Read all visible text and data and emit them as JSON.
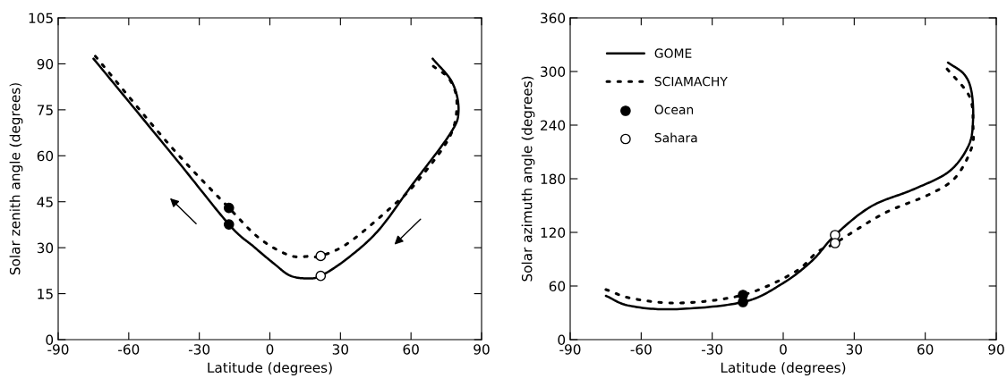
{
  "chart_data": [
    {
      "type": "line",
      "xlabel": "Latitude (degrees)",
      "ylabel": "Solar zenith angle (degrees)",
      "xlim": [
        -90,
        90
      ],
      "xticks": [
        -90,
        -60,
        -30,
        0,
        30,
        60,
        90
      ],
      "ylim": [
        0,
        105
      ],
      "yticks": [
        0,
        15,
        30,
        45,
        60,
        75,
        90,
        105
      ],
      "grid": false,
      "legend": false,
      "series": [
        {
          "color": "#000000",
          "line_style": "solid",
          "x": [
            -75,
            -40,
            -17.4,
            -6.8,
            1.9,
            8.3,
            15,
            21.6,
            33.3,
            46.2,
            60,
            76.4,
            80.2,
            77.6,
            69.2
          ],
          "values": [
            91.7,
            59,
            37.6,
            30.3,
            24.7,
            21,
            20,
            20.8,
            26.7,
            35.7,
            50,
            66.9,
            74.5,
            83.8,
            91.7
          ]
        },
        {
          "color": "#000000",
          "line_style": "dotted",
          "x": [
            -74.2,
            -42.4,
            -17.4,
            -4.5,
            8.3,
            17,
            21.6,
            33.3,
            52.2,
            62.4,
            76.4,
            79.5,
            76.4,
            69.2
          ],
          "values": [
            92.5,
            63.3,
            43,
            33.1,
            27.5,
            27.2,
            27.3,
            31.5,
            43.6,
            51.4,
            66.1,
            77.3,
            84.9,
            89.4
          ]
        },
        {
          "type": "scatter",
          "color": "#000000",
          "marker": "circle",
          "x": [
            -17.4,
            -17.4
          ],
          "values": [
            37.6,
            43
          ]
        },
        {
          "type": "scatter",
          "color": "#ffffff",
          "marker": "circle",
          "x": [
            21.6,
            21.6
          ],
          "values": [
            20.8,
            27.3
          ]
        }
      ]
    },
    {
      "type": "line",
      "xlabel": "Latitude (degrees)",
      "ylabel": "Solar azimuth angle (degrees)",
      "xlim": [
        -90,
        90
      ],
      "xticks": [
        -90,
        -60,
        -30,
        0,
        30,
        60,
        90
      ],
      "ylim": [
        0,
        360
      ],
      "yticks": [
        0,
        60,
        120,
        180,
        240,
        300,
        360
      ],
      "grid": false,
      "legend": "top left",
      "series": [
        {
          "name": "GOME",
          "color": "#000000",
          "line_style": "solid",
          "x": [
            -74.9,
            -65.1,
            -46.2,
            -17,
            -0.8,
            12.1,
            21.9,
            37.1,
            54.9,
            70,
            78.3,
            80.2,
            79.5,
            76.4,
            69.6
          ],
          "values": [
            49,
            38,
            34,
            42,
            62,
            88,
            117,
            149,
            168,
            188,
            217,
            246,
            278,
            297,
            310
          ]
        },
        {
          "name": "SCIAMACHY",
          "color": "#000000",
          "line_style": "dotted",
          "x": [
            -74.9,
            -63.6,
            -43.5,
            -17,
            4.5,
            14.4,
            21.9,
            42.4,
            61.3,
            72.6,
            79.5,
            80.2,
            78.7,
            69.2
          ],
          "values": [
            56,
            46,
            41,
            50,
            75,
            98,
            108,
            141,
            162,
            181,
            214,
            239,
            272,
            303
          ]
        },
        {
          "name": "Ocean",
          "type": "scatter",
          "color": "#000000",
          "marker": "circle",
          "x": [
            -17,
            -17
          ],
          "values": [
            42,
            50
          ]
        },
        {
          "name": "Sahara",
          "type": "scatter",
          "color": "#ffffff",
          "marker": "circle",
          "x": [
            21.9,
            21.9
          ],
          "values": [
            117,
            108
          ]
        }
      ]
    }
  ]
}
